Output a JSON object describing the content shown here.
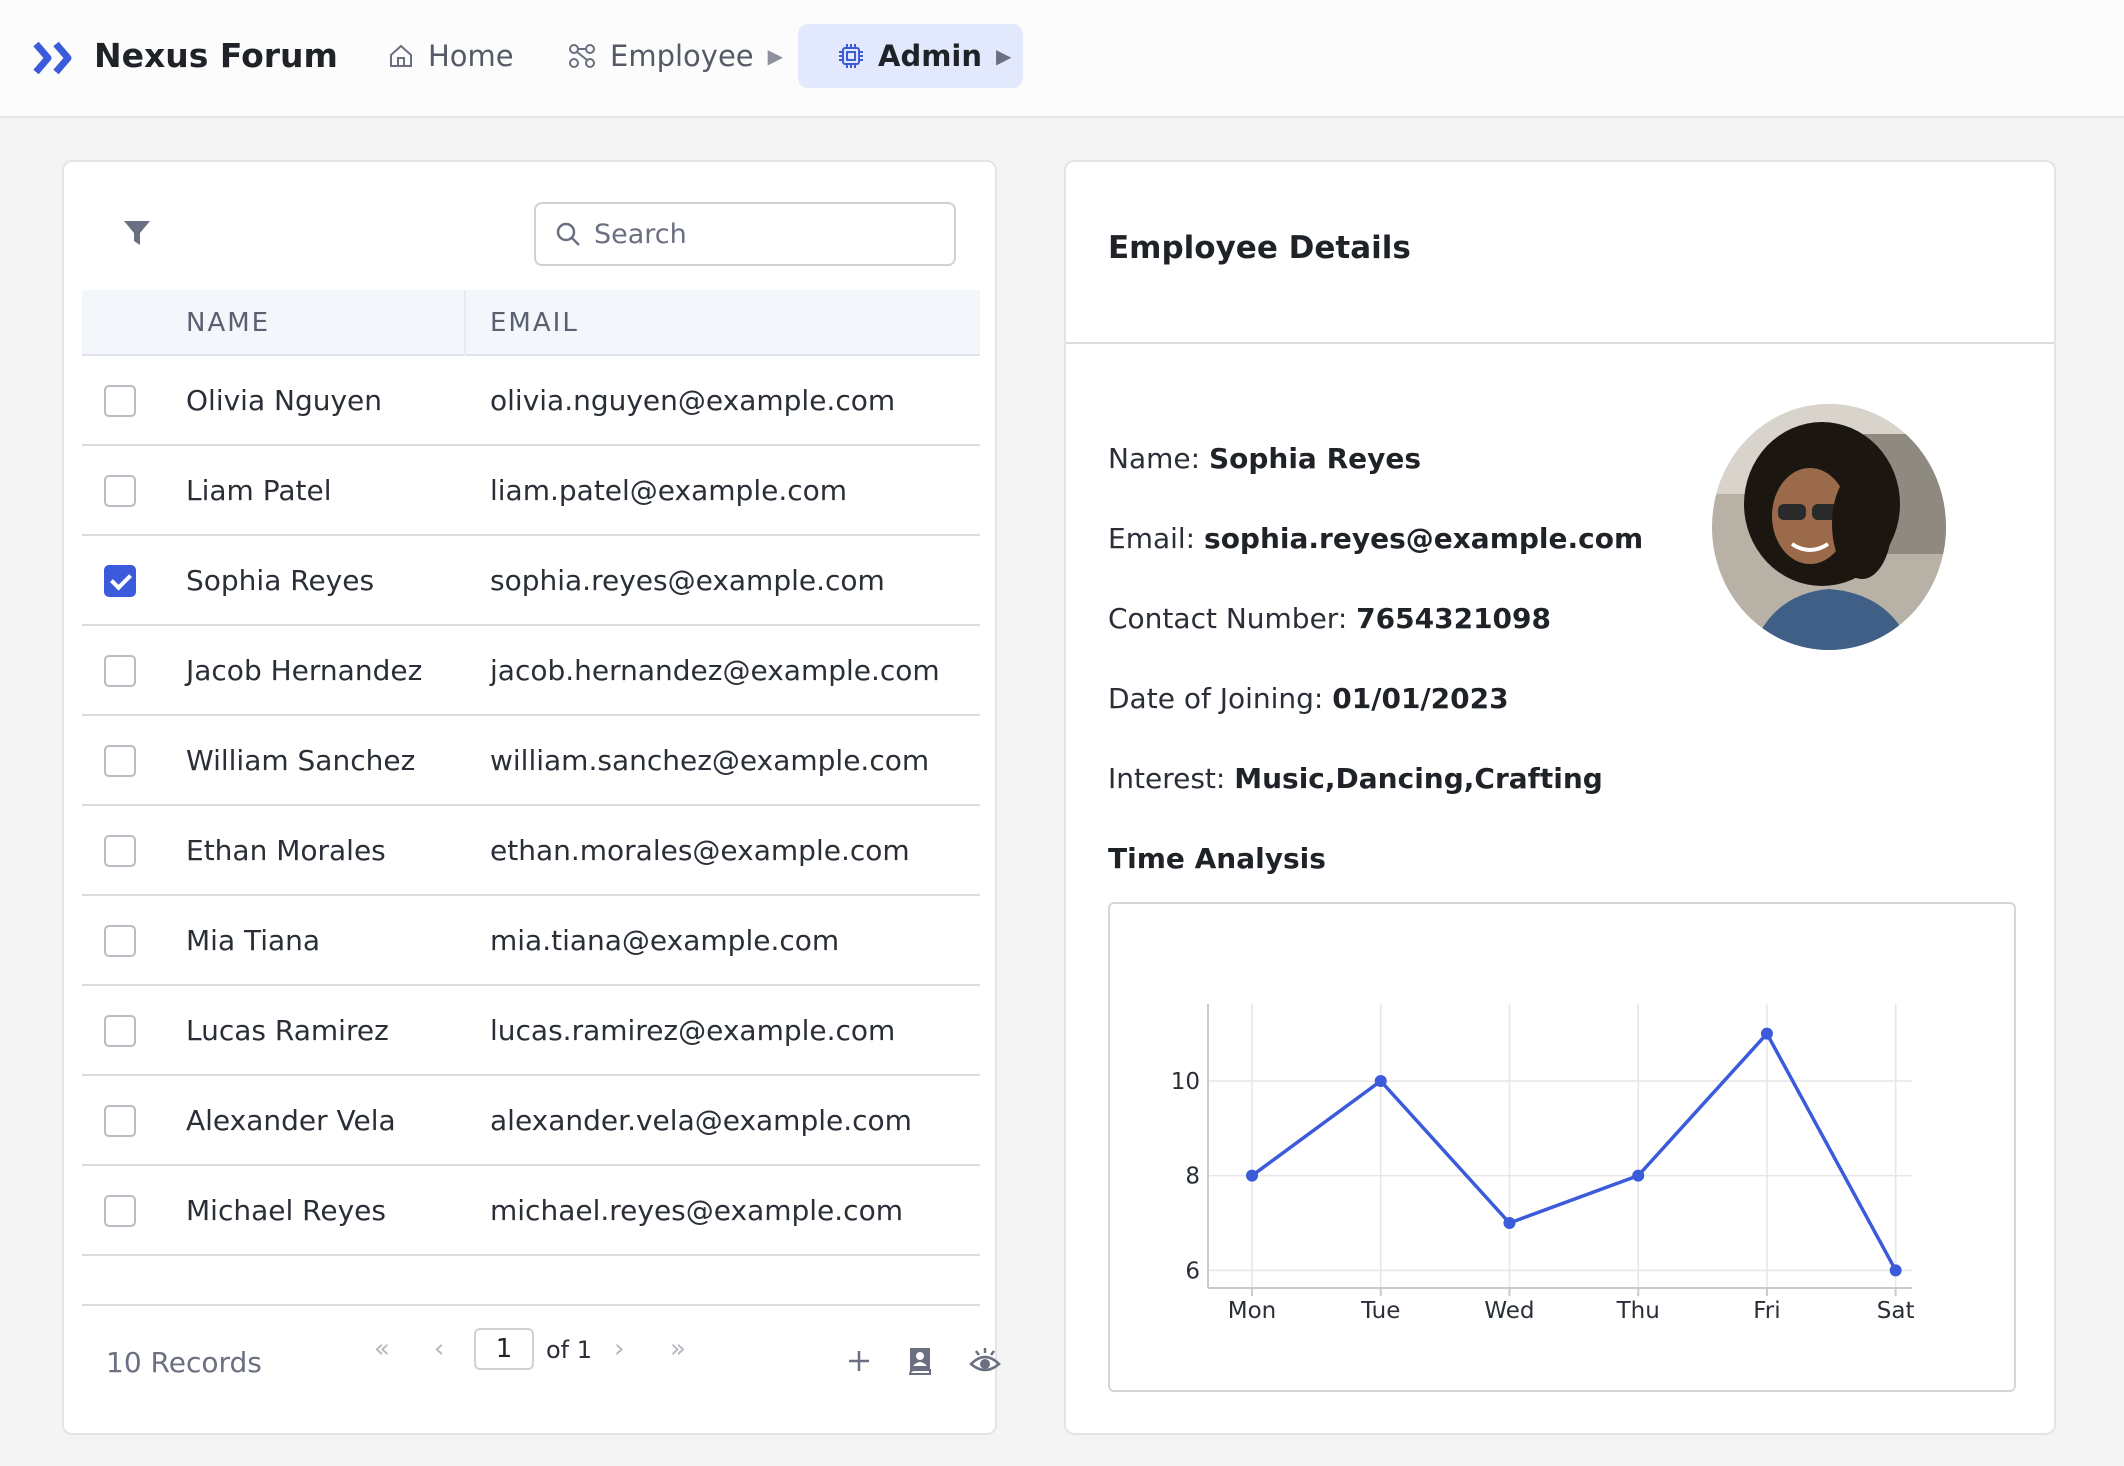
{
  "app": {
    "title": "Nexus Forum"
  },
  "nav": {
    "home": "Home",
    "employee": "Employee",
    "admin": "Admin"
  },
  "colors": {
    "accent": "#3b5bdb",
    "nav_active_bg": "#e3e9fc"
  },
  "search": {
    "placeholder": "Search"
  },
  "table": {
    "headers": {
      "name": "NAME",
      "email": "EMAIL"
    },
    "rows": [
      {
        "name": "Olivia Nguyen",
        "email": "olivia.nguyen@example.com",
        "checked": false
      },
      {
        "name": "Liam Patel",
        "email": "liam.patel@example.com",
        "checked": false
      },
      {
        "name": "Sophia Reyes",
        "email": "sophia.reyes@example.com",
        "checked": true
      },
      {
        "name": "Jacob Hernandez",
        "email": "jacob.hernandez@example.com",
        "checked": false
      },
      {
        "name": "William Sanchez",
        "email": "william.sanchez@example.com",
        "checked": false
      },
      {
        "name": "Ethan Morales",
        "email": "ethan.morales@example.com",
        "checked": false
      },
      {
        "name": "Mia Tiana",
        "email": "mia.tiana@example.com",
        "checked": false
      },
      {
        "name": "Lucas Ramirez",
        "email": "lucas.ramirez@example.com",
        "checked": false
      },
      {
        "name": "Alexander Vela",
        "email": "alexander.vela@example.com",
        "checked": false
      },
      {
        "name": "Michael Reyes",
        "email": "michael.reyes@example.com",
        "checked": false
      }
    ]
  },
  "footer": {
    "records": "10 Records",
    "page_current": "1",
    "page_of": "of 1",
    "first": "«",
    "prev": "‹",
    "next": "›",
    "last": "»"
  },
  "details": {
    "title": "Employee Details",
    "name_label": "Name:",
    "name_value": "Sophia Reyes",
    "email_label": "Email:",
    "email_value": "sophia.reyes@example.com",
    "contact_label": "Contact Number:",
    "contact_value": "7654321098",
    "date_label": "Date of Joining:",
    "date_value": "01/01/2023",
    "interest_label": "Interest:",
    "interest_value": "Music,Dancing,Crafting",
    "time_title": "Time Analysis"
  },
  "chart_data": {
    "type": "line",
    "categories": [
      "Mon",
      "Tue",
      "Wed",
      "Thu",
      "Fri",
      "Sat"
    ],
    "series": [
      {
        "values": [
          8,
          10,
          7,
          8,
          11,
          6
        ]
      }
    ],
    "yticks": [
      6,
      8,
      10
    ],
    "ylim": [
      5.5,
      11.5
    ],
    "grid": true,
    "color": "#3b5bdb"
  }
}
